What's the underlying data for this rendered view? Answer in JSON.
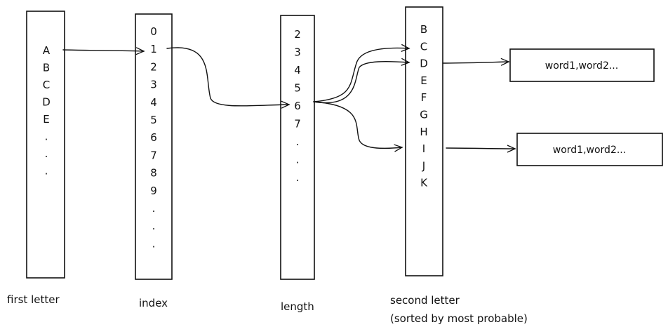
{
  "columns": {
    "first_letter": {
      "label": "first letter",
      "items": [
        "A",
        "B",
        "C",
        "D",
        "E",
        ".",
        ".",
        "."
      ]
    },
    "index": {
      "label": "index",
      "items": [
        "0",
        "1",
        "2",
        "3",
        "4",
        "5",
        "6",
        "7",
        "8",
        "9",
        ".",
        ".",
        "."
      ]
    },
    "length": {
      "label": "length",
      "items": [
        "2",
        "3",
        "4",
        "5",
        "6",
        "7",
        ".",
        ".",
        "."
      ]
    },
    "second_letter": {
      "label": "second letter",
      "sublabel": "(sorted by most probable)",
      "items": [
        "B",
        "C",
        "D",
        "E",
        "F",
        "G",
        "H",
        "I",
        "J",
        "K"
      ]
    }
  },
  "word_boxes": [
    {
      "text": "word1,word2..."
    },
    {
      "text": "word1,word2..."
    }
  ]
}
